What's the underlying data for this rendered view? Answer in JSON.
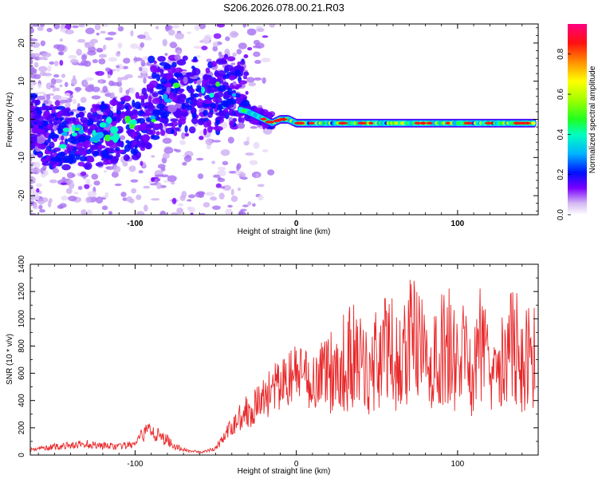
{
  "chart_data": [
    {
      "type": "heatmap",
      "title": "S206.2026.078.00.21.R03",
      "xlabel": "Height of straight line (km)",
      "ylabel": "Frequency (Hz)",
      "xlim": [
        -165,
        150
      ],
      "ylim": [
        -25,
        25
      ],
      "xticks": [
        -100,
        0,
        100
      ],
      "yticks": [
        -20,
        -10,
        0,
        10,
        20
      ],
      "colorbar": {
        "label": "Normalized spectral amplitude",
        "range": [
          0.0,
          0.95
        ],
        "ticks": [
          "0.0",
          "0.2",
          "0.4",
          "0.6",
          "0.8"
        ],
        "colormap": [
          "#ffffff",
          "#c8a8f0",
          "#7a00ff",
          "#0000ff",
          "#00c8ff",
          "#00ff90",
          "#80ff00",
          "#ffff00",
          "#ff9000",
          "#ff0000",
          "#ff0080"
        ]
      },
      "ridge": {
        "x": [
          -160,
          -145,
          -130,
          -115,
          -100,
          -90,
          -80,
          -70,
          -60,
          -50,
          -40,
          -30,
          -25,
          -20,
          -15,
          -10,
          -5,
          0,
          10,
          20,
          40,
          60,
          80,
          100,
          120,
          140,
          148
        ],
        "y": [
          -4,
          -5,
          -5,
          -3,
          -2,
          1,
          2,
          3,
          1,
          2,
          3,
          2,
          1,
          0,
          -1,
          0,
          0,
          -1,
          -1,
          -1,
          -1,
          -1,
          -1,
          -1,
          -1,
          -1,
          -1
        ]
      }
    },
    {
      "type": "line",
      "xlabel": "Height of straight line (km)",
      "ylabel": "SNR (10 * v/v)",
      "xlim": [
        -165,
        150
      ],
      "ylim": [
        0,
        1400
      ],
      "xticks": [
        -100,
        0,
        100
      ],
      "yticks": [
        0,
        200,
        400,
        600,
        800,
        1000,
        1200,
        1400
      ],
      "series": [
        {
          "name": "SNR",
          "color": "#e8282a",
          "x": [
            -165,
            -150,
            -140,
            -130,
            -120,
            -110,
            -100,
            -95,
            -90,
            -85,
            -80,
            -75,
            -70,
            -65,
            -60,
            -55,
            -50,
            -45,
            -40,
            -35,
            -30,
            -25,
            -20,
            -15,
            -10,
            -5,
            0,
            5,
            10,
            15,
            20,
            25,
            30,
            35,
            40,
            45,
            50,
            55,
            60,
            65,
            70,
            75,
            80,
            85,
            90,
            95,
            100,
            105,
            110,
            115,
            120,
            125,
            130,
            135,
            140,
            145,
            148
          ],
          "values": [
            40,
            60,
            70,
            80,
            70,
            60,
            80,
            150,
            200,
            130,
            110,
            60,
            40,
            30,
            20,
            30,
            50,
            130,
            200,
            290,
            330,
            360,
            420,
            480,
            500,
            560,
            600,
            560,
            540,
            600,
            640,
            620,
            680,
            720,
            660,
            600,
            720,
            760,
            760,
            620,
            900,
            800,
            700,
            650,
            760,
            820,
            620,
            780,
            560,
            900,
            700,
            850,
            620,
            880,
            600,
            780,
            720
          ]
        }
      ]
    }
  ]
}
